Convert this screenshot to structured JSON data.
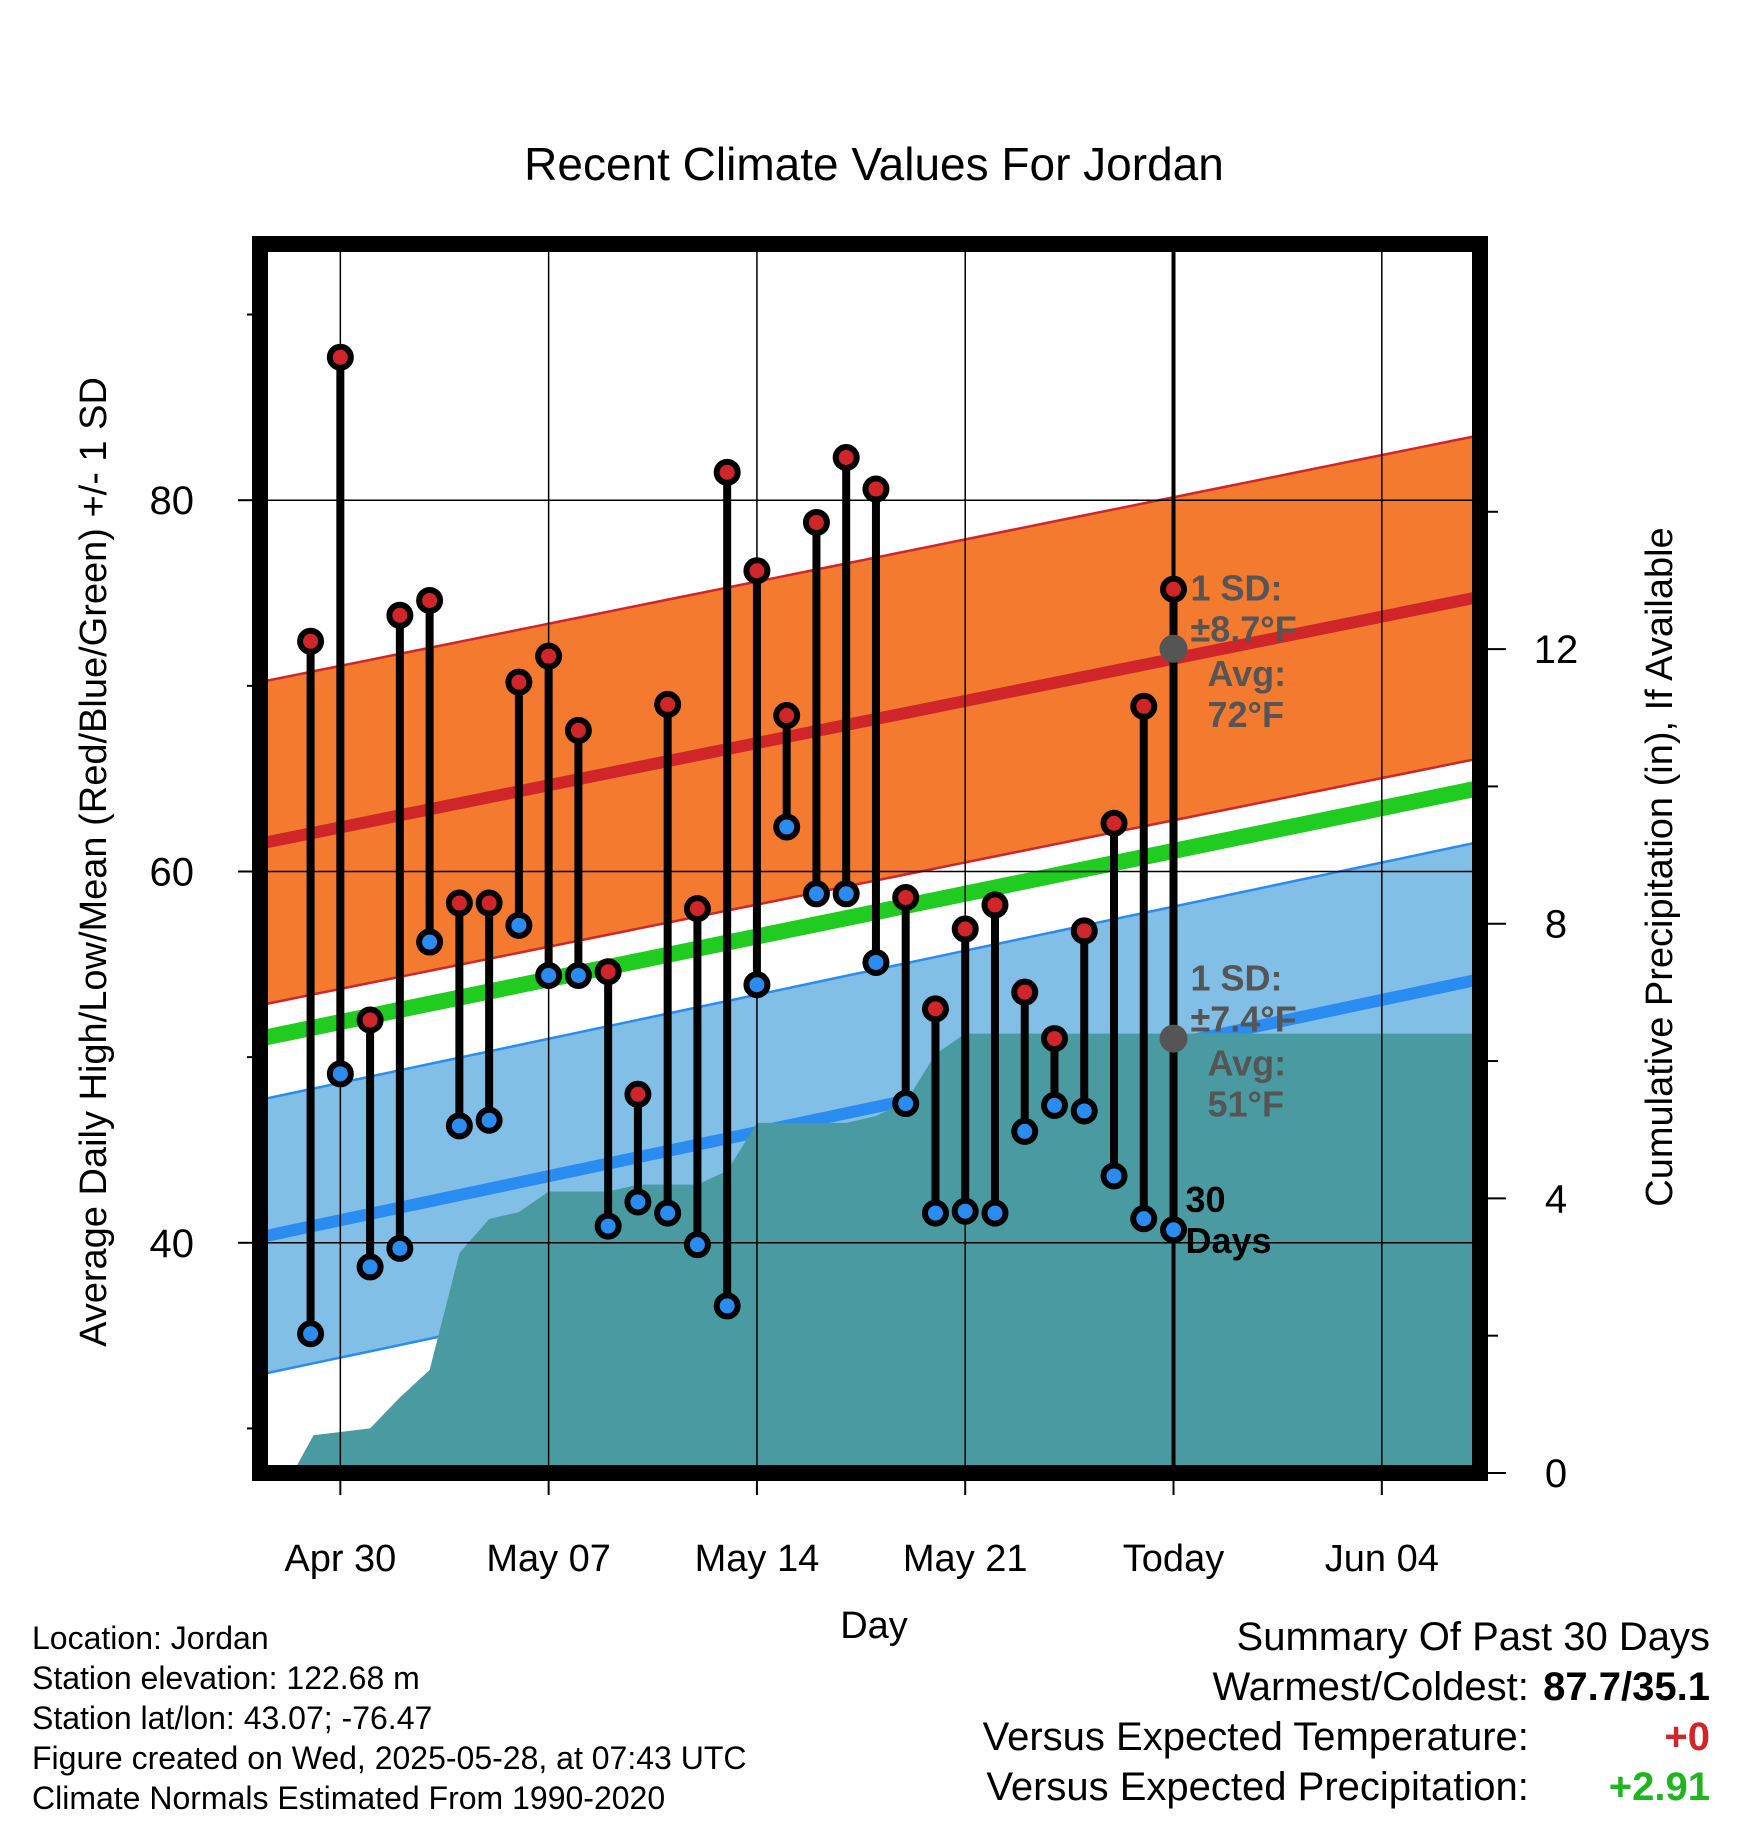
{
  "chart_data": {
    "type": "line",
    "title": "Recent Climate Values For Jordan",
    "xlabel": "Day",
    "ylabel": "Average Daily High/Low/Mean (Red/Blue/Green) +/- 1 SD",
    "y2label": "Cumulative Precipitation (in), If Available",
    "x_ticks": [
      "Apr 30",
      "May 07",
      "May 14",
      "May 21",
      "Today",
      "Jun 04"
    ],
    "x_tick_days": [
      2,
      9,
      16,
      23,
      30,
      37
    ],
    "x_range_days": [
      -0.7,
      40.3
    ],
    "ylim": [
      27.6,
      93.8
    ],
    "y_ticks": [
      "40",
      "60",
      "80"
    ],
    "y_tick_values": [
      40,
      60,
      80
    ],
    "y2lim": [
      0,
      17.9
    ],
    "y2_ticks": [
      "0",
      "4",
      "8",
      "12"
    ],
    "y2_tick_values": [
      0,
      4,
      8,
      12
    ],
    "today_day": 30,
    "today_label": "30\nDays",
    "grid": true,
    "normals": {
      "high_avg_start": 61.5,
      "high_avg_end": 74.8,
      "high_sd": 8.7,
      "low_avg_start": 40.3,
      "low_avg_end": 54.2,
      "low_sd": 7.4,
      "mean_start": 51.0,
      "mean_end": 64.5
    },
    "annotations": {
      "high_sd_label": "1 SD:\n±8.7°F",
      "high_avg_label": "Avg:\n72°F",
      "low_sd_label": "1 SD:\n±7.4°F",
      "low_avg_label": "Avg:\n51°F",
      "high_avg_value": 72,
      "low_avg_value": 51
    },
    "series": [
      {
        "name": "High",
        "color": "#d0262a",
        "values": [
          72.4,
          87.7,
          52.0,
          73.8,
          74.6,
          58.3,
          58.3,
          70.2,
          71.6,
          67.6,
          54.6,
          48.0,
          69.0,
          58.0,
          81.5,
          76.2,
          68.4,
          78.8,
          82.3,
          80.6,
          58.6,
          52.6,
          56.9,
          58.2,
          53.5,
          51.0,
          56.8,
          62.6,
          68.9,
          75.2
        ]
      },
      {
        "name": "Low",
        "color": "#2a8cf0",
        "values": [
          35.1,
          49.1,
          38.7,
          39.7,
          56.2,
          46.3,
          46.6,
          57.1,
          54.4,
          54.4,
          40.9,
          42.2,
          41.6,
          39.9,
          36.6,
          53.9,
          62.4,
          58.8,
          58.8,
          55.1,
          47.5,
          41.6,
          41.7,
          41.6,
          46.0,
          47.4,
          47.1,
          43.6,
          41.3,
          40.7
        ]
      }
    ],
    "precip_days": [
      -0.7,
      0.4,
      1.1,
      3.0,
      4.0,
      5.0,
      6.0,
      7.0,
      8.0,
      9.0,
      10.0,
      11.0,
      12.0,
      13.0,
      14.0,
      15.0,
      16.0,
      17.0,
      18.0,
      19.0,
      20.0,
      21.0,
      22.0,
      23.0,
      24.0,
      25.0,
      26.0,
      30.0,
      40.3
    ],
    "precip_values": [
      0,
      0,
      0.55,
      0.65,
      1.1,
      1.5,
      3.2,
      3.7,
      3.8,
      4.1,
      4.1,
      4.1,
      4.2,
      4.2,
      4.2,
      4.4,
      5.1,
      5.1,
      5.1,
      5.1,
      5.2,
      5.4,
      6.1,
      6.4,
      6.4,
      6.4,
      6.4,
      6.4,
      6.4
    ],
    "colors": {
      "high_band": "#f37a2f",
      "high_line": "#d0262a",
      "low_band": "#82bfe6",
      "low_line": "#2a8cf0",
      "mean_line": "#1fcc1f",
      "precip": "#4a9aa2",
      "annotation": "#555555"
    }
  },
  "info": {
    "location": "Location: Jordan",
    "elevation": "Station elevation: 122.68 m",
    "latlon": "Station lat/lon: 43.07; -76.47",
    "created": "Figure created on Wed, 2025-05-28, at 07:43 UTC",
    "normals": "Climate Normals Estimated From 1990-2020"
  },
  "summary": {
    "title": "Summary Of Past 30 Days",
    "warm_cold_label": "Warmest/Coldest:",
    "warm_cold_value": "87.7/35.1",
    "temp_label": "Versus Expected Temperature:",
    "temp_value": "+0",
    "temp_color": "#d0262a",
    "precip_label": "Versus Expected Precipitation:",
    "precip_value": "+2.91",
    "precip_color": "#1fb51f"
  }
}
